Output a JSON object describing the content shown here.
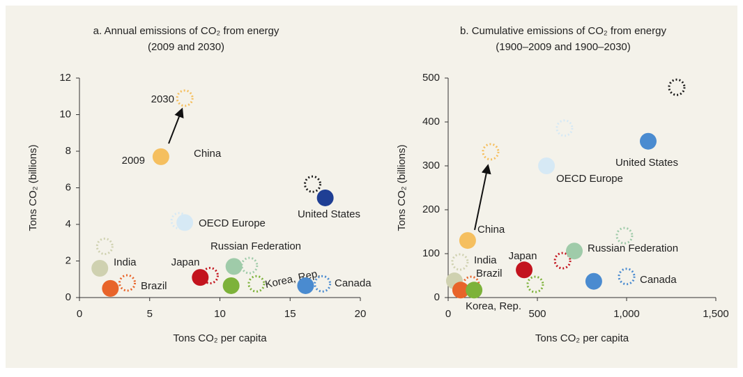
{
  "chart_data": [
    {
      "type": "scatter",
      "title": "a. Annual emissions of CO₂ from energy",
      "subtitle": "(2009 and 2030)",
      "xlabel": "Tons CO₂ per capita",
      "ylabel": "Tons CO₂ (billions)",
      "xlim": [
        0,
        20
      ],
      "xticks": [
        0,
        5,
        10,
        15,
        20
      ],
      "ylim": [
        0,
        12
      ],
      "yticks": [
        0,
        2,
        4,
        6,
        8,
        10,
        12
      ],
      "annotations": [
        "2009",
        "2030"
      ],
      "series": [
        {
          "name": "China",
          "colors": [
            "#f5bf5f",
            "#f5bf5f"
          ],
          "x": [
            5.8,
            7.5
          ],
          "values": [
            7.7,
            10.9
          ]
        },
        {
          "name": "United States",
          "colors": [
            "#1f3f94",
            "#1a1a1a"
          ],
          "x": [
            17.5,
            16.6
          ],
          "values": [
            5.45,
            6.2
          ]
        },
        {
          "name": "OECD Europe",
          "colors": [
            "#d6e9f5",
            "#d6e9f5"
          ],
          "x": [
            7.5,
            7.1
          ],
          "values": [
            4.1,
            4.2
          ]
        },
        {
          "name": "India",
          "colors": [
            "#cfd1b0",
            "#cfd1b0"
          ],
          "x": [
            1.45,
            1.8
          ],
          "values": [
            1.6,
            2.8
          ]
        },
        {
          "name": "Brazil",
          "colors": [
            "#e8642a",
            "#e8642a"
          ],
          "x": [
            2.2,
            3.4
          ],
          "values": [
            0.5,
            0.8
          ]
        },
        {
          "name": "Japan",
          "colors": [
            "#c3141e",
            "#c3141e"
          ],
          "x": [
            8.6,
            9.3
          ],
          "values": [
            1.1,
            1.2
          ]
        },
        {
          "name": "Russian Federation",
          "colors": [
            "#9fcba9",
            "#9fcba9"
          ],
          "x": [
            11.0,
            12.1
          ],
          "values": [
            1.7,
            1.75
          ]
        },
        {
          "name": "Korea, Rep.",
          "colors": [
            "#7db23a",
            "#7db23a"
          ],
          "x": [
            10.8,
            12.6
          ],
          "values": [
            0.65,
            0.75
          ]
        },
        {
          "name": "Canada",
          "colors": [
            "#4a8bd0",
            "#4a8bd0"
          ],
          "x": [
            16.1,
            17.3
          ],
          "values": [
            0.65,
            0.75
          ]
        }
      ]
    },
    {
      "type": "scatter",
      "title": "b. Cumulative emissions of CO₂ from energy",
      "subtitle": "(1900–2009 and 1900–2030)",
      "xlabel": "Tons CO₂ per capita",
      "ylabel": "Tons CO₂ (billions)",
      "xlim": [
        0,
        1500
      ],
      "xticks": [
        0,
        500,
        {
          "value": 1000,
          "label": "1,000"
        },
        {
          "value": 1500,
          "label": "1,500"
        }
      ],
      "ylim": [
        0,
        500
      ],
      "yticks": [
        0,
        100,
        200,
        300,
        400,
        500
      ],
      "series": [
        {
          "name": "China",
          "colors": [
            "#f5bf5f",
            "#f5bf5f"
          ],
          "x": [
            109,
            238
          ],
          "values": [
            130,
            332
          ]
        },
        {
          "name": "United States",
          "colors": [
            "#4a8bd0",
            "#1a1a1a"
          ],
          "x": [
            1121,
            1281
          ],
          "values": [
            356,
            479
          ]
        },
        {
          "name": "OECD Europe",
          "colors": [
            "#d6e9f5",
            "#d6e9f5"
          ],
          "x": [
            551,
            652
          ],
          "values": [
            300,
            386
          ]
        },
        {
          "name": "India",
          "colors": [
            "#cfd1b0",
            "#cfd1b0"
          ],
          "x": [
            35,
            66
          ],
          "values": [
            38,
            81
          ]
        },
        {
          "name": "Brazil",
          "colors": [
            "#e8642a",
            "#e8642a"
          ],
          "x": [
            70,
            129
          ],
          "values": [
            17,
            30
          ]
        },
        {
          "name": "Japan",
          "colors": [
            "#c3141e",
            "#c3141e"
          ],
          "x": [
            426,
            641
          ],
          "values": [
            63,
            84
          ]
        },
        {
          "name": "Russian Federation",
          "colors": [
            "#9fcba9",
            "#9fcba9"
          ],
          "x": [
            707,
            988
          ],
          "values": [
            106,
            141
          ]
        },
        {
          "name": "Korea, Rep.",
          "colors": [
            "#7db23a",
            "#7db23a"
          ],
          "x": [
            145,
            488
          ],
          "values": [
            17,
            30
          ]
        },
        {
          "name": "Canada",
          "colors": [
            "#4a8bd0",
            "#4a8bd0"
          ],
          "x": [
            816,
            1000
          ],
          "values": [
            37,
            48
          ]
        }
      ]
    }
  ]
}
